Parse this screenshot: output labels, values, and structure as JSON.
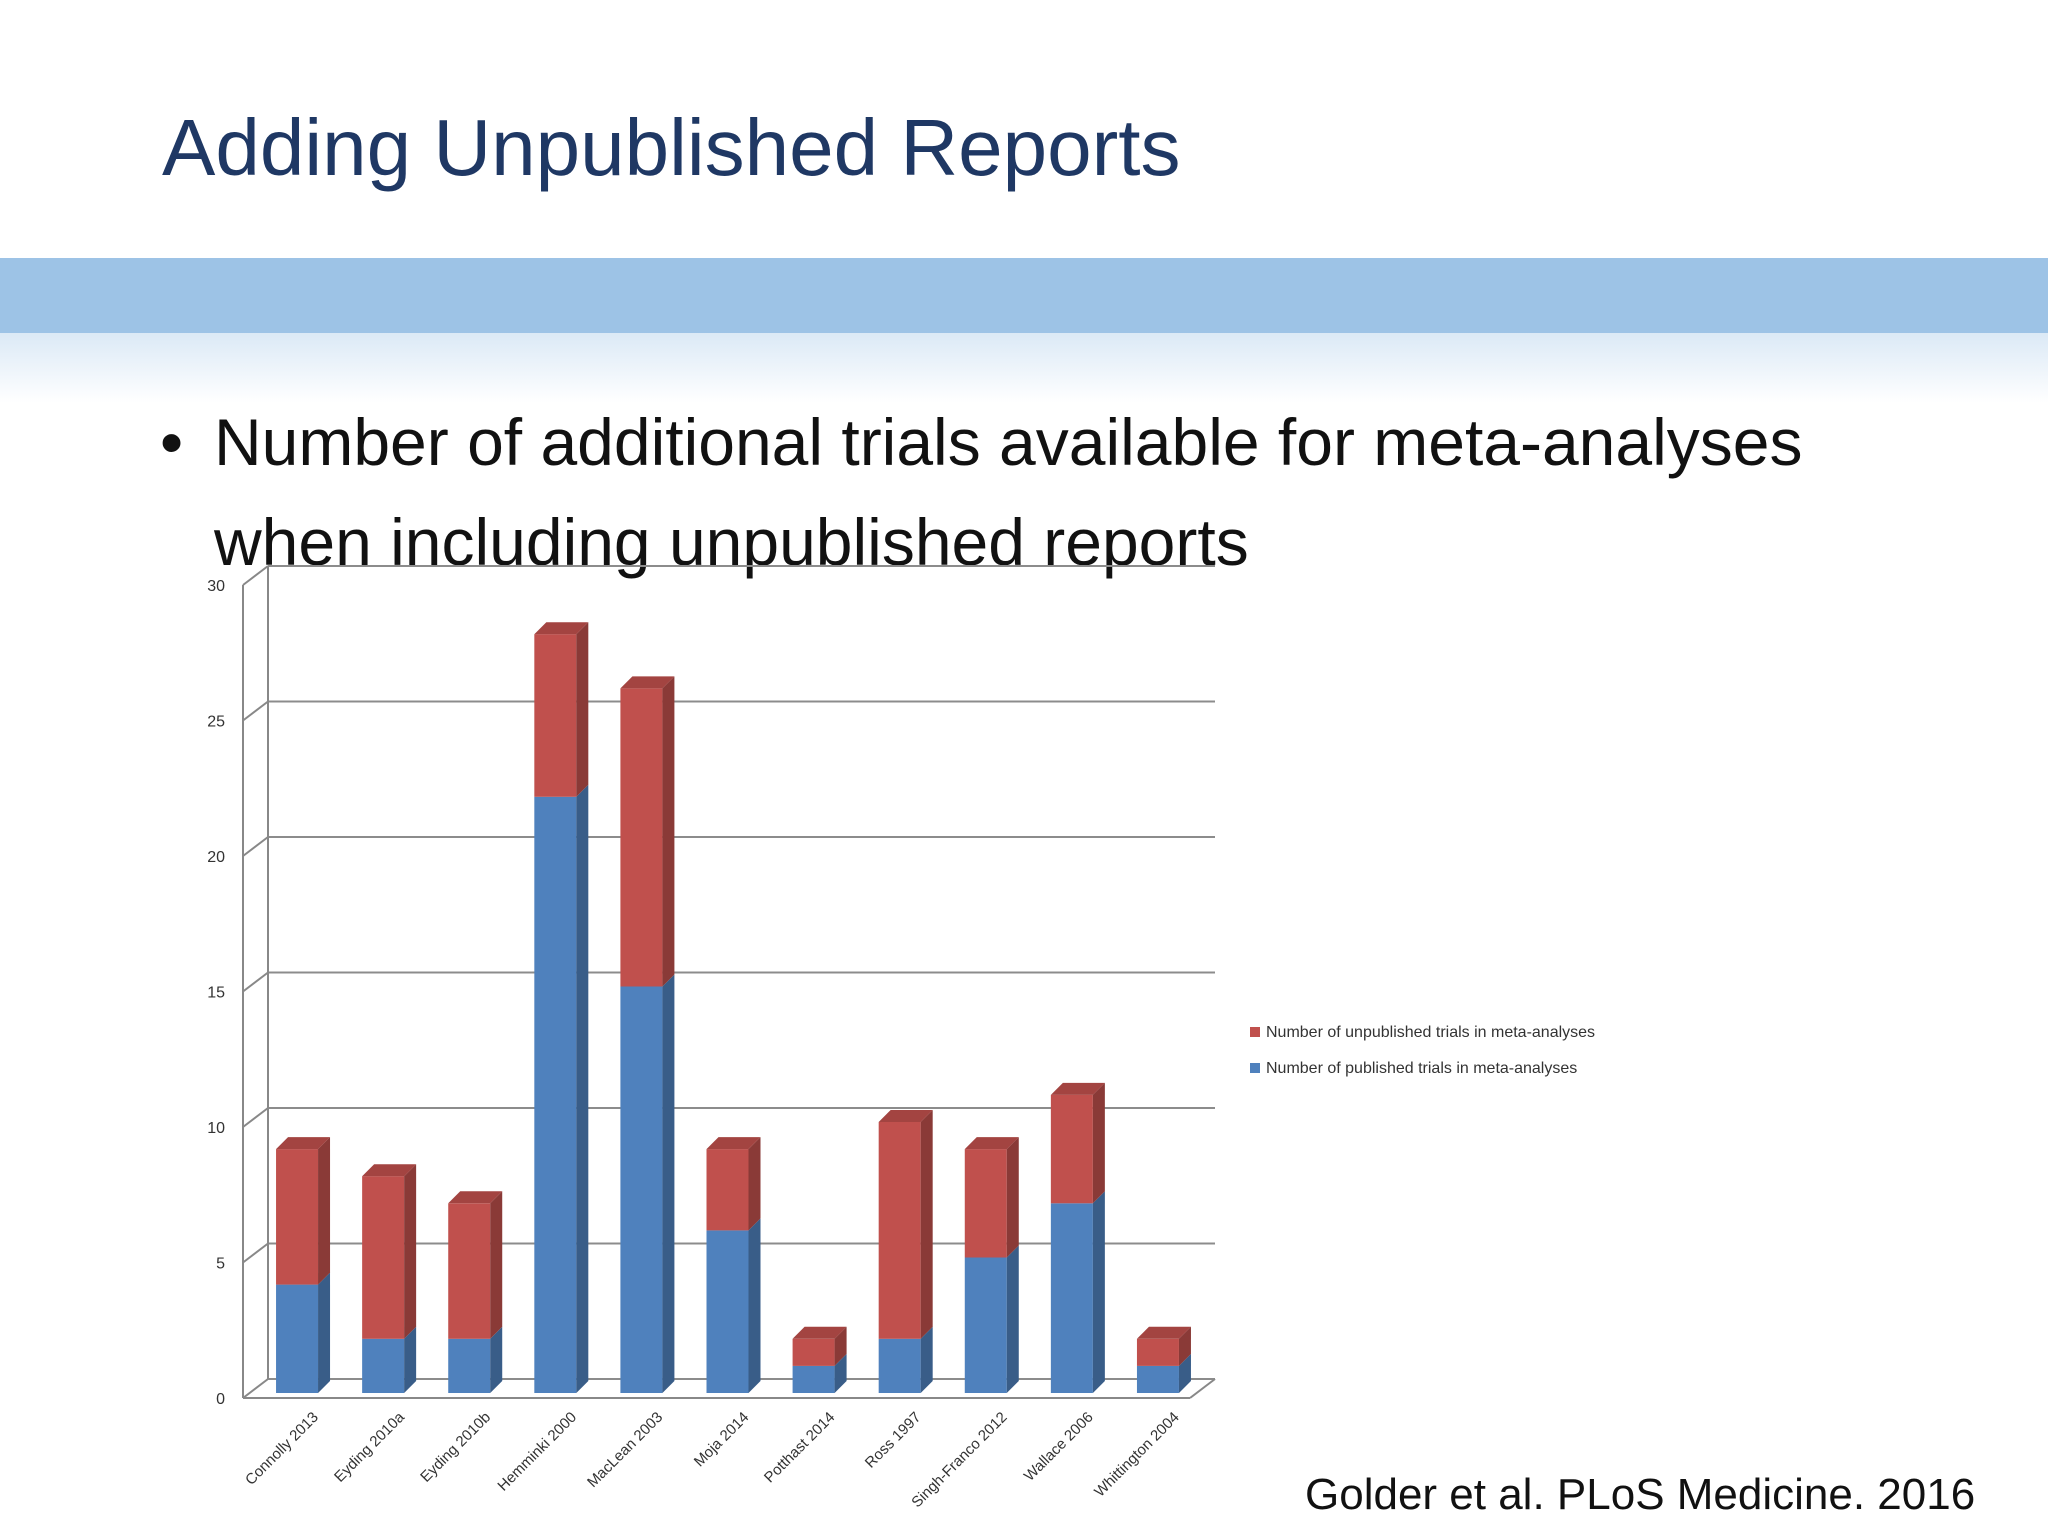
{
  "slide": {
    "title": "Adding Unpublished Reports",
    "bullet_symbol": "•",
    "bullet_lines": [
      "Number of additional trials available for meta-analyses",
      "when including unpublished reports"
    ],
    "citation": "Golder et al. PLoS Medicine. 2016"
  },
  "colors": {
    "title": "#1f3864",
    "band": "#9dc3e6",
    "unpublished": "#c0504d",
    "published": "#4f81bd"
  },
  "chart_data": {
    "type": "bar",
    "stacked": true,
    "three_d": true,
    "categories": [
      "Connolly 2013",
      "Eyding 2010a",
      "Eyding 2010b",
      "Hemminki 2000",
      "MacLean 2003",
      "Moja 2014",
      "Potthast 2014",
      "Ross 1997",
      "Singh-Franco 2012",
      "Wallace 2006",
      "Whittington 2004"
    ],
    "series": [
      {
        "name": "Number of published trials in meta-analyses",
        "values": [
          4,
          2,
          2,
          22,
          15,
          6,
          1,
          2,
          5,
          7,
          1
        ]
      },
      {
        "name": "Number of unpublished trials in meta-analyses",
        "values": [
          5,
          6,
          5,
          6,
          11,
          3,
          1,
          8,
          4,
          4,
          1
        ]
      }
    ],
    "legend_order": [
      "Number of unpublished trials in meta-analyses",
      "Number of published trials in meta-analyses"
    ],
    "yticks": [
      0,
      5,
      10,
      15,
      20,
      25,
      30
    ],
    "ylim": [
      0,
      30
    ],
    "grid": true,
    "legend_position": "right"
  }
}
